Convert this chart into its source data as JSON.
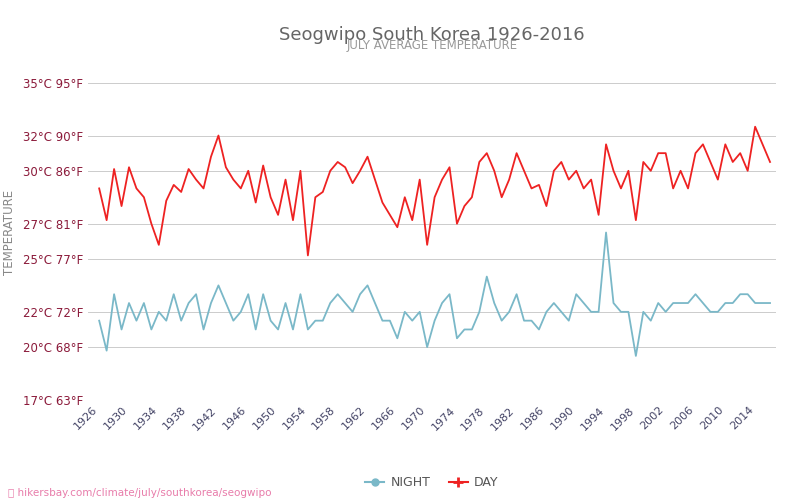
{
  "title": "Seogwipo South Korea 1926-2016",
  "subtitle": "JULY AVERAGE TEMPERATURE",
  "ylabel": "TEMPERATURE",
  "xlabel_url": "hikersbay.com/climate/july/southkorea/seogwipo",
  "years": [
    1926,
    1927,
    1928,
    1929,
    1930,
    1931,
    1932,
    1933,
    1934,
    1935,
    1936,
    1937,
    1938,
    1939,
    1940,
    1941,
    1942,
    1943,
    1944,
    1945,
    1946,
    1947,
    1948,
    1949,
    1950,
    1951,
    1952,
    1953,
    1954,
    1955,
    1956,
    1957,
    1958,
    1959,
    1960,
    1961,
    1962,
    1963,
    1964,
    1965,
    1966,
    1967,
    1968,
    1969,
    1970,
    1971,
    1972,
    1973,
    1974,
    1975,
    1976,
    1977,
    1978,
    1979,
    1980,
    1981,
    1982,
    1983,
    1984,
    1985,
    1986,
    1987,
    1988,
    1989,
    1990,
    1991,
    1992,
    1993,
    1994,
    1995,
    1996,
    1997,
    1998,
    1999,
    2000,
    2001,
    2002,
    2003,
    2004,
    2005,
    2006,
    2007,
    2008,
    2009,
    2010,
    2011,
    2012,
    2013,
    2014,
    2015,
    2016
  ],
  "day_temps": [
    29.0,
    27.2,
    30.1,
    28.0,
    30.2,
    29.0,
    28.5,
    27.0,
    25.8,
    28.3,
    29.2,
    28.8,
    30.1,
    29.5,
    29.0,
    30.8,
    32.0,
    30.2,
    29.5,
    29.0,
    30.0,
    28.2,
    30.3,
    28.5,
    27.5,
    29.5,
    27.2,
    30.0,
    25.2,
    28.5,
    28.8,
    30.0,
    30.5,
    30.2,
    29.3,
    30.0,
    30.8,
    29.5,
    28.2,
    27.5,
    26.8,
    28.5,
    27.2,
    29.5,
    25.8,
    28.5,
    29.5,
    30.2,
    27.0,
    28.0,
    28.5,
    30.5,
    31.0,
    30.0,
    28.5,
    29.5,
    31.0,
    30.0,
    29.0,
    29.2,
    28.0,
    30.0,
    30.5,
    29.5,
    30.0,
    29.0,
    29.5,
    27.5,
    31.5,
    30.0,
    29.0,
    30.0,
    27.2,
    30.5,
    30.0,
    31.0,
    31.0,
    29.0,
    30.0,
    29.0,
    31.0,
    31.5,
    30.5,
    29.5,
    31.5,
    30.5,
    31.0,
    30.0,
    32.5,
    31.5,
    30.5
  ],
  "night_temps": [
    21.5,
    19.8,
    23.0,
    21.0,
    22.5,
    21.5,
    22.5,
    21.0,
    22.0,
    21.5,
    23.0,
    21.5,
    22.5,
    23.0,
    21.0,
    22.5,
    23.5,
    22.5,
    21.5,
    22.0,
    23.0,
    21.0,
    23.0,
    21.5,
    21.0,
    22.5,
    21.0,
    23.0,
    21.0,
    21.5,
    21.5,
    22.5,
    23.0,
    22.5,
    22.0,
    23.0,
    23.5,
    22.5,
    21.5,
    21.5,
    20.5,
    22.0,
    21.5,
    22.0,
    20.0,
    21.5,
    22.5,
    23.0,
    20.5,
    21.0,
    21.0,
    22.0,
    24.0,
    22.5,
    21.5,
    22.0,
    23.0,
    21.5,
    21.5,
    21.0,
    22.0,
    22.5,
    22.0,
    21.5,
    23.0,
    22.5,
    22.0,
    22.0,
    26.5,
    22.5,
    22.0,
    22.0,
    19.5,
    22.0,
    21.5,
    22.5,
    22.0,
    22.5,
    22.5,
    22.5,
    23.0,
    22.5,
    22.0,
    22.0,
    22.5,
    22.5,
    23.0,
    23.0,
    22.5,
    22.5,
    22.5
  ],
  "day_color": "#ee2222",
  "night_color": "#7ab8c8",
  "title_color": "#666666",
  "subtitle_color": "#999999",
  "ylabel_color": "#888888",
  "tick_color": "#8b1a3a",
  "grid_color": "#cccccc",
  "background_color": "#ffffff",
  "ylim_min": 17,
  "ylim_max": 36,
  "yticks_c": [
    17,
    20,
    22,
    25,
    27,
    30,
    32,
    35
  ],
  "yticks_f": [
    63,
    68,
    72,
    77,
    81,
    86,
    90,
    95
  ],
  "xtick_start": 1926,
  "xtick_step": 4,
  "xtick_end": 2014
}
